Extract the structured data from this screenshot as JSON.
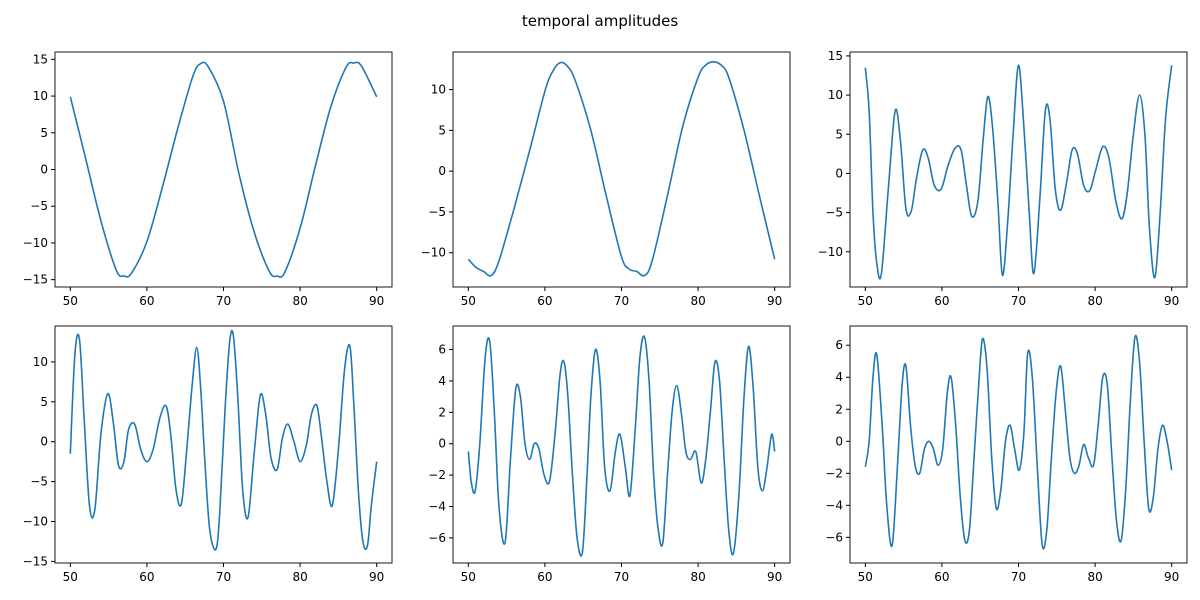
{
  "figure": {
    "title": "temporal amplitudes",
    "line_color": "#1f77b4"
  },
  "chart_data": [
    {
      "type": "line",
      "xlim": [
        48,
        92
      ],
      "ylim": [
        -16,
        16
      ],
      "xticks": [
        50,
        60,
        70,
        80,
        90
      ],
      "yticks": [
        -15,
        -10,
        -5,
        0,
        5,
        10,
        15
      ],
      "x": [
        50,
        52,
        54,
        56,
        57,
        58,
        60,
        62,
        64,
        66,
        67,
        68,
        70,
        72,
        74,
        76,
        77,
        78,
        80,
        82,
        84,
        86,
        87,
        88,
        90
      ],
      "y": [
        9.9,
        1.5,
        -7.0,
        -13.7,
        -14.5,
        -14.1,
        -9.8,
        -2.5,
        5.5,
        12.7,
        14.4,
        14.0,
        9.3,
        -0.5,
        -8.5,
        -13.9,
        -14.5,
        -14.0,
        -8.0,
        0.5,
        8.5,
        13.9,
        14.5,
        14.1,
        9.9
      ]
    },
    {
      "type": "line",
      "xlim": [
        48,
        92
      ],
      "ylim": [
        -14.2,
        14.6
      ],
      "xticks": [
        50,
        60,
        70,
        80,
        90
      ],
      "yticks": [
        -10,
        -5,
        0,
        5,
        10
      ],
      "x": [
        50,
        51,
        52,
        53,
        54,
        56,
        58,
        60,
        61,
        62,
        63,
        64,
        66,
        68,
        70,
        71,
        72,
        73,
        74,
        76,
        78,
        80,
        81,
        82,
        83,
        84,
        86,
        88,
        90
      ],
      "y": [
        -10.8,
        -11.8,
        -12.3,
        -12.8,
        -11.0,
        -4.5,
        2.5,
        9.8,
        12.2,
        13.3,
        12.8,
        11.0,
        5.0,
        -3.0,
        -10.5,
        -12.0,
        -12.3,
        -12.8,
        -11.0,
        -3.0,
        5.5,
        11.5,
        13.0,
        13.4,
        13.0,
        11.5,
        5.0,
        -3.0,
        -10.8
      ]
    },
    {
      "type": "line",
      "xlim": [
        48,
        92
      ],
      "ylim": [
        -14.5,
        15.5
      ],
      "xticks": [
        50,
        60,
        70,
        80,
        90
      ],
      "yticks": [
        -10,
        -5,
        0,
        5,
        10,
        15
      ],
      "x": [
        50,
        50.5,
        51,
        51.5,
        52.1,
        53,
        53.9,
        54.6,
        55.3,
        56,
        56.7,
        57.5,
        58.2,
        59,
        59.9,
        60.8,
        61.7,
        62.5,
        63.2,
        63.9,
        64.7,
        65.4,
        66,
        66.6,
        67.3,
        67.9,
        68.6,
        69.3,
        70,
        70.7,
        71.4,
        72,
        72.8,
        73.5,
        74.1,
        74.8,
        75.5,
        76.3,
        77,
        77.7,
        78.5,
        79.3,
        80.1,
        81,
        81.8,
        82.7,
        83.5,
        84.2,
        85,
        85.8,
        86.5,
        87.1,
        87.8,
        88.5,
        89.2,
        90
      ],
      "y": [
        13.5,
        8.0,
        -5.0,
        -11.5,
        -12.8,
        -2.0,
        8.0,
        4.0,
        -4.5,
        -4.8,
        -0.5,
        3.0,
        2.0,
        -1.5,
        -2.0,
        1.0,
        3.2,
        3.0,
        -1.5,
        -5.5,
        -3.5,
        4.5,
        9.8,
        6.0,
        -3.5,
        -13.0,
        -6.0,
        5.0,
        13.8,
        6.0,
        -5.0,
        -12.8,
        -3.0,
        8.0,
        7.0,
        -2.0,
        -4.7,
        -1.0,
        3.0,
        2.5,
        -1.5,
        -2.2,
        0.5,
        3.4,
        2.0,
        -3.5,
        -5.8,
        -2.5,
        5.0,
        10.0,
        5.0,
        -7.0,
        -13.3,
        -5.0,
        7.0,
        13.8
      ]
    },
    {
      "type": "line",
      "xlim": [
        48,
        92
      ],
      "ylim": [
        -15.2,
        14.5
      ],
      "xticks": [
        50,
        60,
        70,
        80,
        90
      ],
      "yticks": [
        -15,
        -10,
        -5,
        0,
        5,
        10
      ],
      "x": [
        50,
        50.6,
        51.2,
        51.8,
        52.5,
        53.2,
        54,
        54.9,
        55.6,
        56.3,
        57,
        57.6,
        58.4,
        59.2,
        60,
        60.8,
        61.7,
        62.5,
        63.1,
        63.8,
        64.5,
        65.2,
        65.9,
        66.5,
        67,
        67.6,
        68.2,
        69,
        69.5,
        70.2,
        70.8,
        71.3,
        71.9,
        72.5,
        73.2,
        74,
        74.8,
        75.5,
        76.2,
        77,
        77.7,
        78.4,
        79.2,
        80,
        80.8,
        81.5,
        82.2,
        82.8,
        83.5,
        84.2,
        85,
        85.8,
        86.5,
        87,
        87.6,
        88.2,
        88.8,
        89.3,
        90
      ],
      "y": [
        -1.5,
        11.0,
        12.8,
        3.0,
        -8.0,
        -8.5,
        1.0,
        6.0,
        2.5,
        -3.0,
        -2.5,
        1.5,
        2.2,
        -1.0,
        -2.5,
        -1.0,
        3.0,
        4.5,
        1.0,
        -6.0,
        -7.8,
        -1.0,
        7.0,
        11.8,
        7.0,
        -3.0,
        -11.0,
        -13.5,
        -9.0,
        4.0,
        12.5,
        13.2,
        5.0,
        -6.0,
        -9.5,
        -1.5,
        5.8,
        3.5,
        -2.0,
        -3.5,
        0.5,
        2.2,
        0.0,
        -2.5,
        -0.5,
        3.5,
        4.5,
        0.5,
        -5.0,
        -8.0,
        -1.0,
        9.0,
        12.0,
        5.0,
        -6.0,
        -12.5,
        -13.0,
        -8.0,
        -2.5
      ]
    },
    {
      "type": "line",
      "xlim": [
        48,
        92
      ],
      "ylim": [
        -7.6,
        7.5
      ],
      "xticks": [
        50,
        60,
        70,
        80,
        90
      ],
      "yticks": [
        -6,
        -4,
        -2,
        0,
        2,
        4,
        6
      ],
      "x": [
        50,
        50.4,
        50.9,
        51.5,
        52.2,
        52.8,
        53.4,
        54,
        54.8,
        55.5,
        56.2,
        56.8,
        57.4,
        58,
        58.6,
        59.2,
        59.9,
        60.6,
        61.3,
        62,
        62.5,
        63,
        63.6,
        64.2,
        64.9,
        65.5,
        66,
        66.6,
        67.2,
        67.8,
        68.5,
        69.2,
        69.8,
        70.5,
        71.1,
        71.8,
        72.4,
        73,
        73.6,
        74.2,
        74.8,
        75.4,
        76,
        76.6,
        77.2,
        77.8,
        78.4,
        79,
        79.7,
        80.4,
        81,
        81.6,
        82.2,
        82.8,
        83.4,
        84,
        84.6,
        85.3,
        86,
        86.6,
        87.2,
        87.8,
        88.4,
        89,
        89.6,
        90
      ],
      "y": [
        -0.5,
        -2.5,
        -3.0,
        0.0,
        5.5,
        6.5,
        2.0,
        -4.0,
        -6.3,
        -1.0,
        3.5,
        3.0,
        0.0,
        -1.0,
        0.0,
        -0.3,
        -2.0,
        -2.4,
        0.5,
        4.5,
        5.2,
        3.0,
        -2.0,
        -6.0,
        -6.9,
        -2.0,
        3.0,
        6.0,
        4.0,
        -1.5,
        -3.0,
        -0.5,
        0.6,
        -1.5,
        -3.3,
        1.0,
        5.5,
        6.8,
        4.0,
        -2.0,
        -5.5,
        -6.3,
        -2.0,
        2.0,
        3.7,
        2.0,
        -0.5,
        -1.0,
        -0.5,
        -2.5,
        -1.0,
        2.0,
        5.2,
        4.0,
        -1.0,
        -5.5,
        -7.0,
        -3.5,
        3.0,
        6.2,
        3.5,
        -1.5,
        -3.0,
        -1.5,
        0.6,
        -0.5
      ]
    },
    {
      "type": "line",
      "xlim": [
        48,
        92
      ],
      "ylim": [
        -7.6,
        7.2
      ],
      "xticks": [
        50,
        60,
        70,
        80,
        90
      ],
      "yticks": [
        -6,
        -4,
        -2,
        0,
        2,
        4,
        6
      ],
      "x": [
        50,
        50.5,
        51,
        51.5,
        52.2,
        52.8,
        53.5,
        54.2,
        54.8,
        55.3,
        55.9,
        56.5,
        57.1,
        57.7,
        58.3,
        58.9,
        59.5,
        60.1,
        60.7,
        61.2,
        61.8,
        62.4,
        63,
        63.6,
        64.2,
        64.8,
        65.3,
        65.9,
        66.5,
        67.1,
        67.7,
        68.3,
        68.9,
        69.5,
        70.1,
        70.7,
        71.2,
        71.8,
        72.5,
        73.1,
        73.7,
        74.3,
        74.9,
        75.5,
        76.1,
        76.7,
        77.3,
        77.9,
        78.5,
        79.1,
        79.8,
        80.4,
        81,
        81.6,
        82.2,
        82.8,
        83.4,
        84,
        84.6,
        85.2,
        85.8,
        86.4,
        87,
        87.6,
        88.2,
        88.8,
        89.4,
        90
      ],
      "y": [
        -1.6,
        0.0,
        4.0,
        5.4,
        1.0,
        -4.0,
        -6.5,
        -1.5,
        3.5,
        4.7,
        1.0,
        -1.5,
        -2.0,
        -0.5,
        0.0,
        -0.5,
        -1.5,
        -0.5,
        3.0,
        4.0,
        1.0,
        -3.5,
        -6.2,
        -5.5,
        -1.0,
        3.5,
        6.4,
        4.5,
        -1.0,
        -4.2,
        -3.0,
        0.0,
        1.0,
        -0.5,
        -1.8,
        0.5,
        5.5,
        4.0,
        -2.0,
        -6.5,
        -5.5,
        -1.0,
        3.0,
        4.7,
        2.0,
        -1.0,
        -2.0,
        -1.5,
        -0.2,
        -1.0,
        -1.5,
        1.0,
        4.0,
        3.5,
        -1.0,
        -5.0,
        -6.2,
        -3.0,
        2.5,
        6.5,
        5.0,
        0.0,
        -4.2,
        -3.5,
        -0.5,
        1.0,
        0.0,
        -1.8
      ]
    }
  ]
}
